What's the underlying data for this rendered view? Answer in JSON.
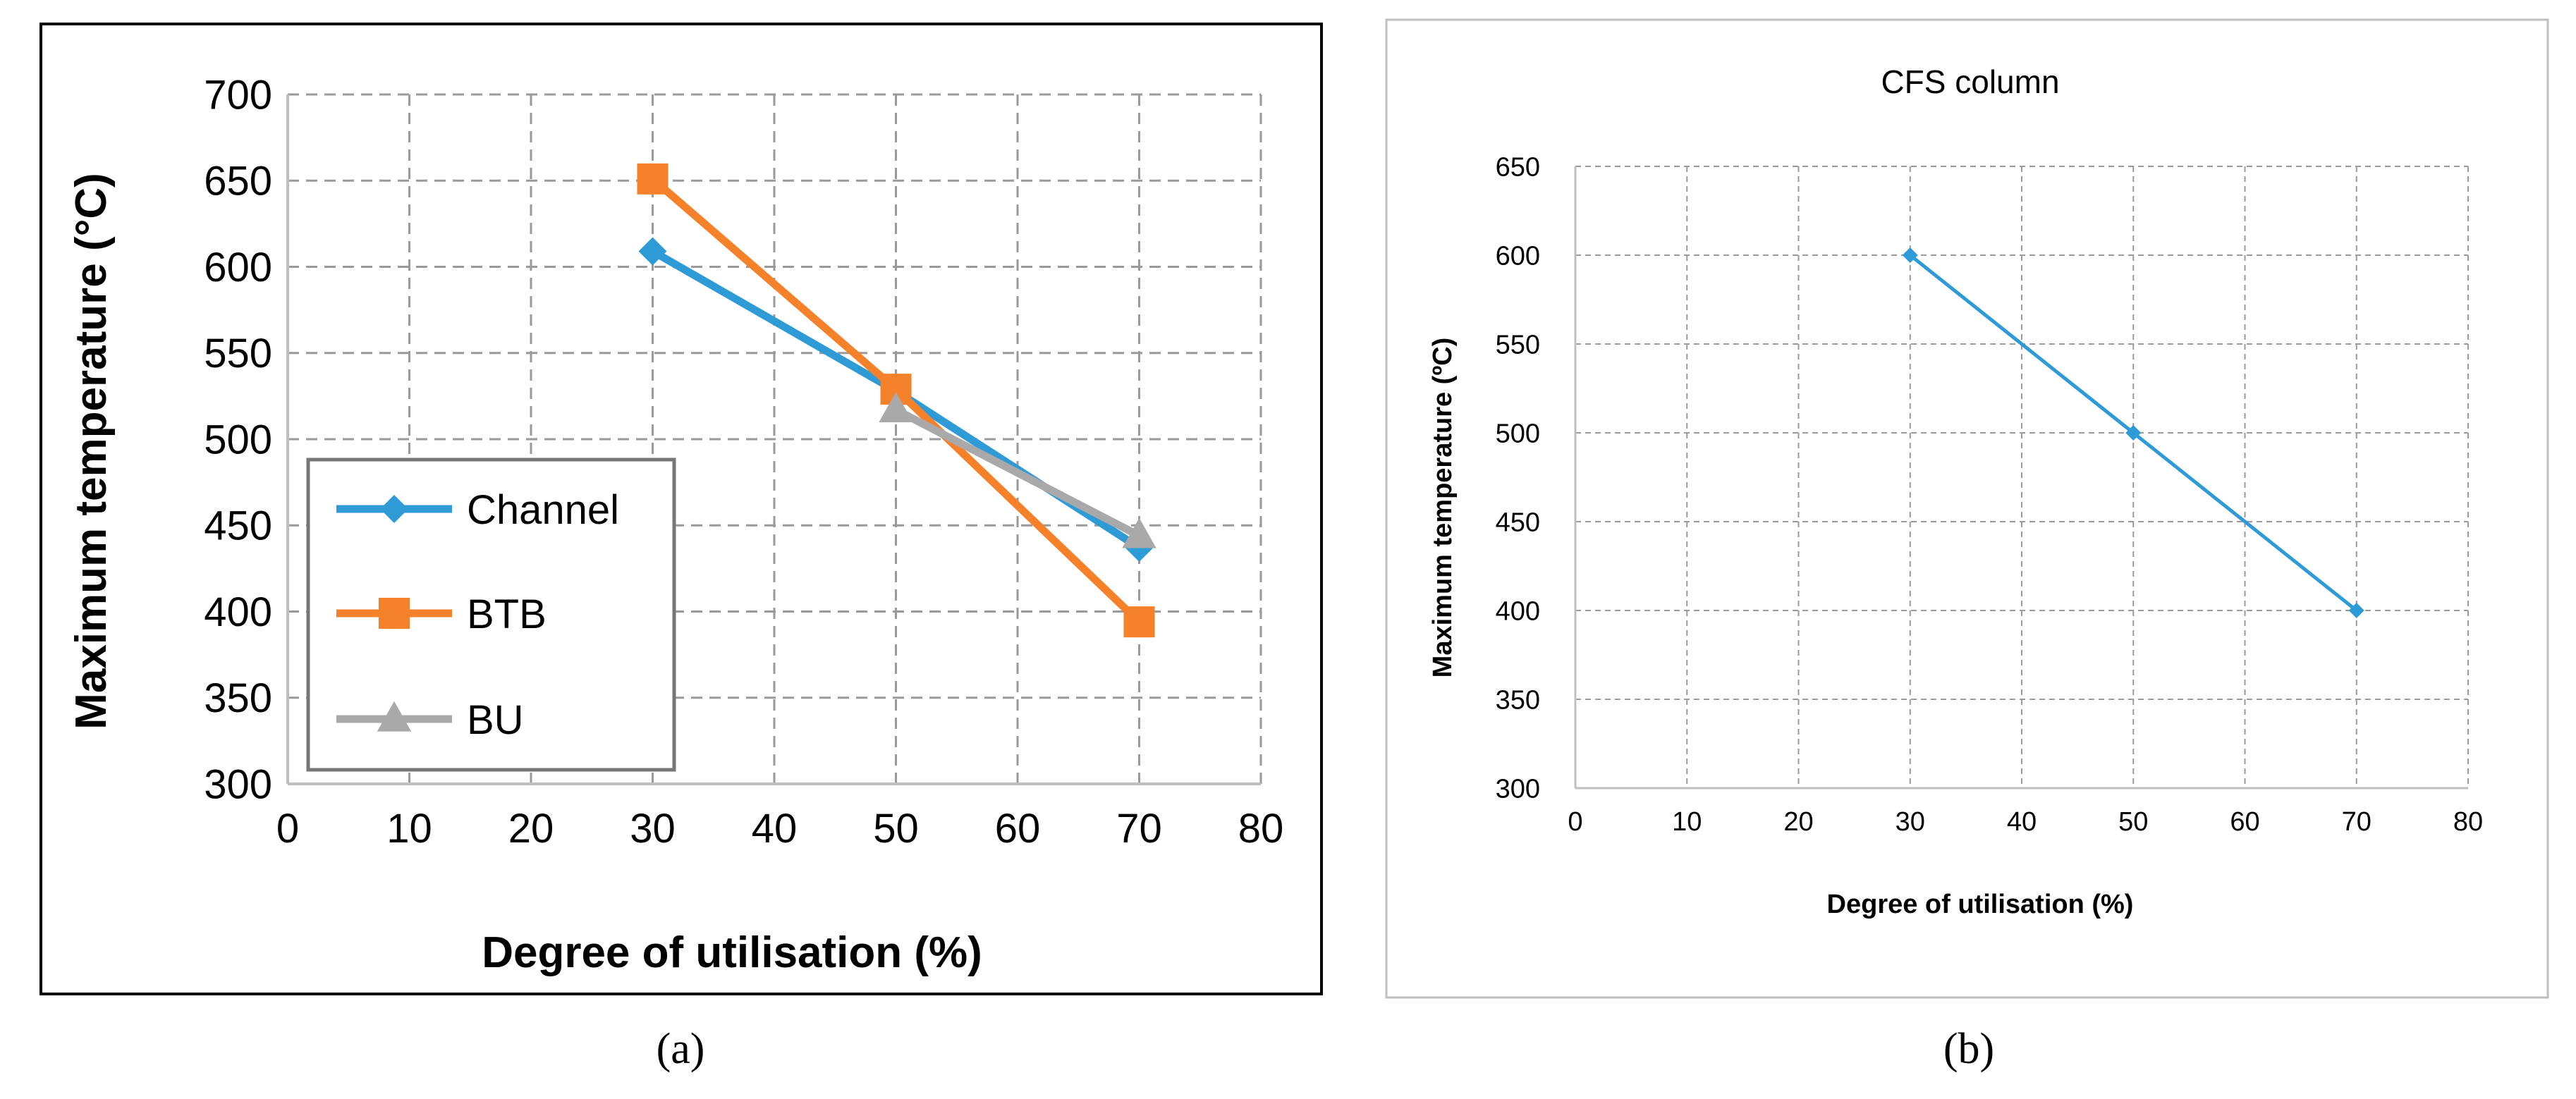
{
  "panel_labels": {
    "a": "(a)",
    "b": "(b)"
  },
  "colors": {
    "channel": "#2E9BD6",
    "btb": "#F5822A",
    "bu": "#A9A9A9",
    "grid": "#9A9A9A",
    "axis": "#BFBFBF",
    "frame_a": "#000000",
    "frame_b": "#BFBFBF"
  },
  "chart_data": [
    {
      "type": "line",
      "panel": "a",
      "title": "",
      "xlabel": "Degree of utilisation (%)",
      "ylabel": "Maximum temperature (°C)",
      "xlim": [
        0,
        80
      ],
      "ylim": [
        300,
        700
      ],
      "xticks": [
        0,
        10,
        20,
        30,
        40,
        50,
        60,
        70,
        80
      ],
      "yticks": [
        300,
        350,
        400,
        450,
        500,
        550,
        600,
        650,
        700
      ],
      "grid": true,
      "legend_position": "lower-left",
      "series": [
        {
          "name": "Channel",
          "marker": "diamond",
          "x": [
            30,
            50,
            70
          ],
          "y": [
            609,
            528,
            437
          ]
        },
        {
          "name": "BTB",
          "marker": "square",
          "x": [
            30,
            50,
            70
          ],
          "y": [
            651,
            529,
            394
          ]
        },
        {
          "name": "BU",
          "marker": "triangle",
          "x": [
            50,
            70
          ],
          "y": [
            517,
            444
          ]
        }
      ]
    },
    {
      "type": "line",
      "panel": "b",
      "title": "CFS column",
      "xlabel": "Degree of utilisation  (%)",
      "ylabel": "Maximum temperature (ºC)",
      "xlim": [
        0,
        80
      ],
      "ylim": [
        300,
        650
      ],
      "xticks": [
        0,
        10,
        20,
        30,
        40,
        50,
        60,
        70,
        80
      ],
      "yticks": [
        300,
        350,
        400,
        450,
        500,
        550,
        600,
        650
      ],
      "grid": true,
      "legend_position": "none",
      "series": [
        {
          "name": "CFS column",
          "marker": "diamond",
          "x": [
            30,
            50,
            70
          ],
          "y": [
            600,
            500,
            400
          ]
        }
      ]
    }
  ]
}
